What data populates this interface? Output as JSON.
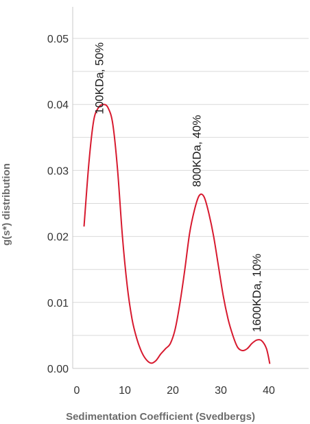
{
  "chart_data": {
    "type": "line",
    "xlabel": "Sedimentation Coefficient (Svedbergs)",
    "ylabel": "g(s*) distribution",
    "xlim": [
      0,
      48
    ],
    "ylim": [
      0,
      0.05
    ],
    "x_ticks": [
      "0",
      "10",
      "20",
      "30",
      "40"
    ],
    "y_ticks": [
      "0.00",
      "0.01",
      "0.02",
      "0.03",
      "0.04",
      "0.05"
    ],
    "grid": "horizontal",
    "series": [
      {
        "color": "#d7192e",
        "x": [
          1.5,
          2.5,
          3.5,
          4.5,
          5.5,
          6.5,
          7.5,
          8.5,
          9.5,
          10.5,
          11.5,
          12.5,
          13.5,
          14.5,
          15.5,
          16.5,
          17.5,
          18.5,
          19.5,
          20.5,
          21.5,
          22.5,
          23.5,
          24.5,
          25.5,
          26.5,
          27.5,
          28.5,
          29.5,
          30.5,
          31.5,
          32.5,
          33.5,
          34.5,
          35.5,
          36.5,
          37.5,
          38.5,
          39.5,
          40.2
        ],
        "y": [
          0.0215,
          0.031,
          0.0375,
          0.0395,
          0.04,
          0.0395,
          0.037,
          0.03,
          0.02,
          0.0125,
          0.0075,
          0.0045,
          0.0025,
          0.0013,
          0.0008,
          0.0012,
          0.0022,
          0.003,
          0.0038,
          0.006,
          0.01,
          0.015,
          0.0205,
          0.024,
          0.0262,
          0.026,
          0.0235,
          0.02,
          0.0155,
          0.011,
          0.0075,
          0.005,
          0.0032,
          0.0027,
          0.003,
          0.0038,
          0.0043,
          0.0042,
          0.003,
          0.0007
        ]
      }
    ],
    "annotations": [
      {
        "text": "100KDa, 50%",
        "x": 5.5,
        "y": 0.0385
      },
      {
        "text": "800KDa, 40%",
        "x": 25.8,
        "y": 0.0275
      },
      {
        "text": "1600KDa, 10%",
        "x": 38.3,
        "y": 0.0055
      }
    ]
  }
}
